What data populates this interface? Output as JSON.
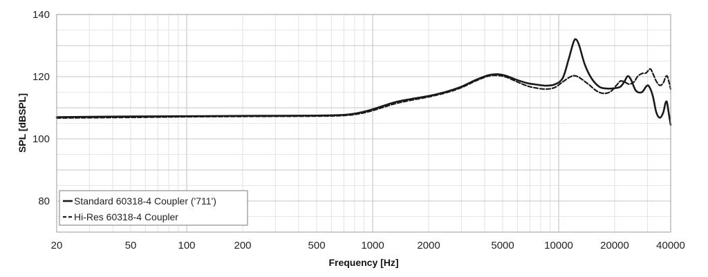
{
  "chart_data": {
    "type": "line",
    "xlabel": "Frequency [Hz]",
    "ylabel": "SPL [dBSPL]",
    "x_scale": "log",
    "xlim": [
      20,
      40000
    ],
    "ylim": [
      70,
      140
    ],
    "x_ticks": [
      20,
      50,
      100,
      200,
      500,
      1000,
      2000,
      5000,
      10000,
      20000,
      40000
    ],
    "x_tick_labels": [
      "20",
      "50",
      "100",
      "200",
      "500",
      "1000",
      "2000",
      "5000",
      "10000",
      "20000",
      "40000"
    ],
    "y_ticks": [
      80,
      100,
      120,
      140
    ],
    "y_tick_labels": [
      "80",
      "100",
      "120",
      "140"
    ],
    "grid": true,
    "legend_position": "bottom-left",
    "series": [
      {
        "name": "Standard 60318-4 Coupler ('711')",
        "style": "solid",
        "color": "#1a1a1a",
        "points": [
          [
            20,
            107.0
          ],
          [
            50,
            107.2
          ],
          [
            100,
            107.3
          ],
          [
            200,
            107.4
          ],
          [
            500,
            107.5
          ],
          [
            700,
            107.7
          ],
          [
            850,
            108.4
          ],
          [
            1000,
            109.5
          ],
          [
            1300,
            111.7
          ],
          [
            1600,
            112.8
          ],
          [
            2000,
            113.8
          ],
          [
            2500,
            115.2
          ],
          [
            3000,
            116.8
          ],
          [
            3600,
            119.0
          ],
          [
            4200,
            120.5
          ],
          [
            4700,
            120.8
          ],
          [
            5200,
            120.3
          ],
          [
            6000,
            118.9
          ],
          [
            6800,
            117.9
          ],
          [
            7500,
            117.5
          ],
          [
            8500,
            117.1
          ],
          [
            9500,
            117.5
          ],
          [
            10500,
            119.5
          ],
          [
            11300,
            125.5
          ],
          [
            12000,
            131.0
          ],
          [
            12400,
            132.0
          ],
          [
            12900,
            130.0
          ],
          [
            13800,
            124.0
          ],
          [
            15000,
            119.5
          ],
          [
            16500,
            116.8
          ],
          [
            18000,
            116.2
          ],
          [
            20000,
            116.3
          ],
          [
            21500,
            116.8
          ],
          [
            22600,
            118.5
          ],
          [
            23500,
            120.2
          ],
          [
            24500,
            119.0
          ],
          [
            26000,
            115.5
          ],
          [
            28000,
            115.0
          ],
          [
            29500,
            116.8
          ],
          [
            30500,
            117.0
          ],
          [
            32000,
            114.0
          ],
          [
            33500,
            108.5
          ],
          [
            35000,
            106.8
          ],
          [
            36500,
            108.5
          ],
          [
            37500,
            111.5
          ],
          [
            38200,
            111.8
          ],
          [
            39000,
            108.5
          ],
          [
            40000,
            104.5
          ]
        ]
      },
      {
        "name": "Hi-Res 60318-4 Coupler",
        "style": "dashed",
        "color": "#1a1a1a",
        "points": [
          [
            20,
            106.7
          ],
          [
            50,
            106.9
          ],
          [
            100,
            107.1
          ],
          [
            200,
            107.2
          ],
          [
            500,
            107.3
          ],
          [
            700,
            107.5
          ],
          [
            850,
            108.1
          ],
          [
            1000,
            109.1
          ],
          [
            1300,
            111.2
          ],
          [
            1600,
            112.4
          ],
          [
            2000,
            113.5
          ],
          [
            2500,
            114.9
          ],
          [
            3000,
            116.5
          ],
          [
            3600,
            118.7
          ],
          [
            4200,
            120.2
          ],
          [
            4700,
            120.4
          ],
          [
            5200,
            119.9
          ],
          [
            6000,
            118.3
          ],
          [
            6800,
            117.0
          ],
          [
            7500,
            116.4
          ],
          [
            8500,
            116.0
          ],
          [
            9500,
            116.5
          ],
          [
            10500,
            118.3
          ],
          [
            11500,
            119.9
          ],
          [
            12200,
            120.3
          ],
          [
            13000,
            119.6
          ],
          [
            14500,
            117.5
          ],
          [
            16000,
            115.4
          ],
          [
            17500,
            114.6
          ],
          [
            19000,
            115.2
          ],
          [
            20500,
            117.3
          ],
          [
            21500,
            118.6
          ],
          [
            22600,
            118.3
          ],
          [
            24000,
            117.6
          ],
          [
            25500,
            118.4
          ],
          [
            26500,
            120.0
          ],
          [
            28000,
            121.0
          ],
          [
            29500,
            121.2
          ],
          [
            31000,
            122.5
          ],
          [
            32000,
            121.2
          ],
          [
            33500,
            118.5
          ],
          [
            35000,
            117.2
          ],
          [
            36500,
            118.0
          ],
          [
            37500,
            119.8
          ],
          [
            38300,
            120.2
          ],
          [
            39100,
            118.5
          ],
          [
            40000,
            116.0
          ]
        ]
      }
    ]
  }
}
